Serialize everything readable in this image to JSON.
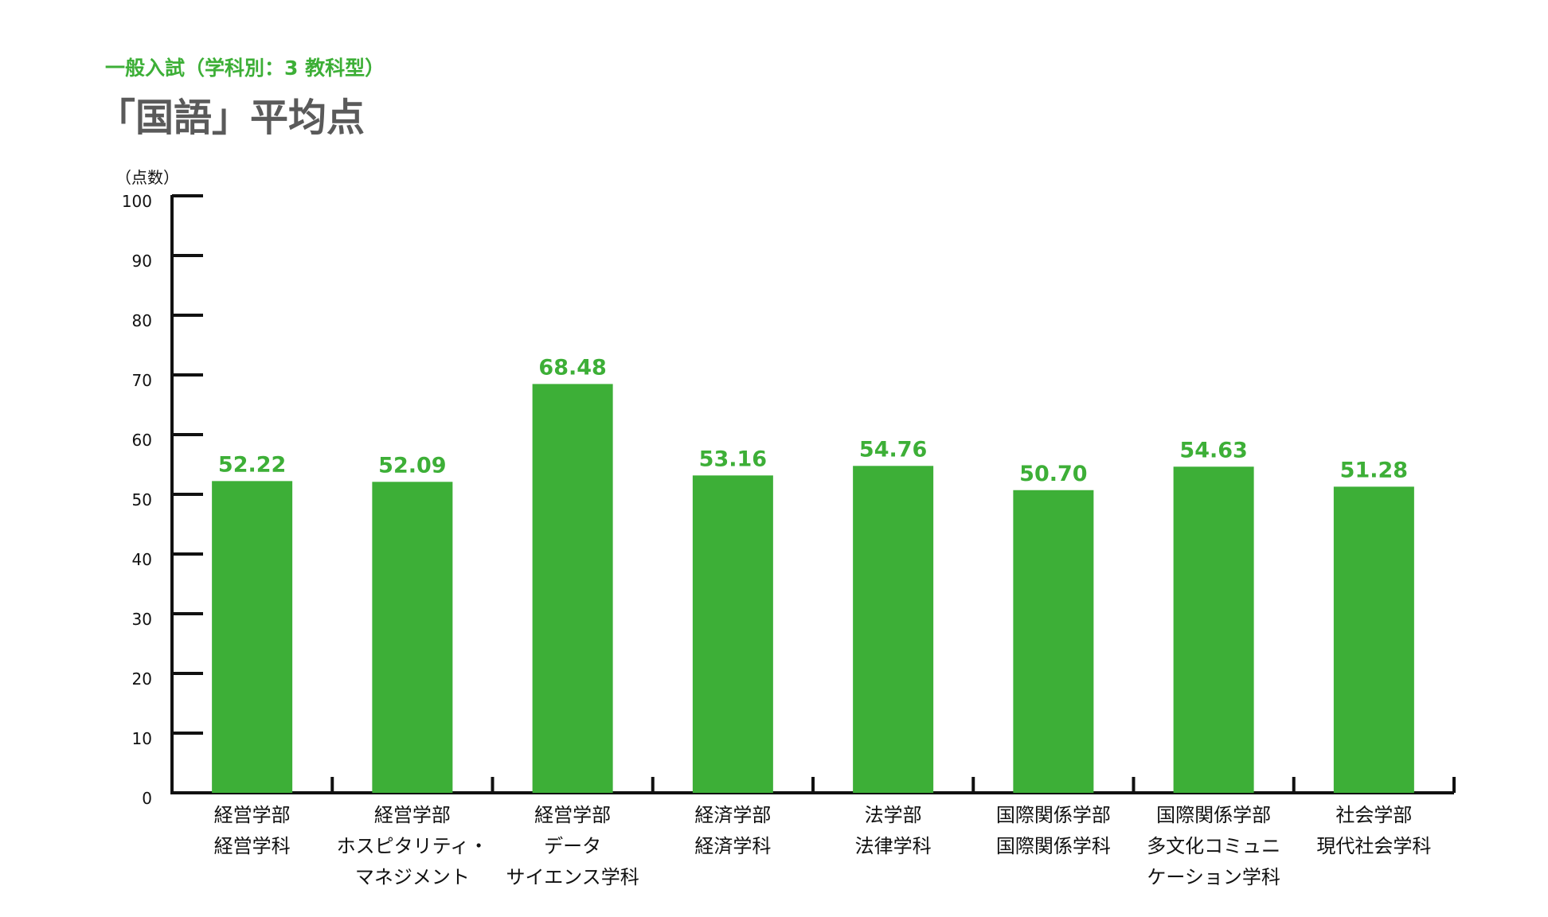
{
  "header": {
    "subtitle": "一般入試（学科別：3 教科型）",
    "title": "「国語」平均点"
  },
  "colors": {
    "bar": "#3daf37",
    "value_label": "#3daf37",
    "title": "#5a5a5a",
    "axis": "#111111"
  },
  "chart_data": {
    "type": "bar",
    "title": "「国語」平均点",
    "subtitle": "一般入試（学科別：3 教科型）",
    "xlabel": "",
    "ylabel": "（点数）",
    "ylim": [
      0,
      100
    ],
    "yticks": [
      0,
      10,
      20,
      30,
      40,
      50,
      60,
      70,
      80,
      90,
      100
    ],
    "grid": false,
    "categories": [
      [
        "経営学部",
        "経営学科"
      ],
      [
        "経営学部",
        "ホスピタリティ・",
        "マネジメント"
      ],
      [
        "経営学部",
        "データ",
        "サイエンス学科"
      ],
      [
        "経済学部",
        "経済学科"
      ],
      [
        "法学部",
        "法律学科"
      ],
      [
        "国際関係学部",
        "国際関係学科"
      ],
      [
        "国際関係学部",
        "多文化コミュニ",
        "ケーション学科"
      ],
      [
        "社会学部",
        "現代社会学科"
      ]
    ],
    "values": [
      52.22,
      52.09,
      68.48,
      53.16,
      54.76,
      50.7,
      54.63,
      51.28
    ],
    "value_labels": [
      "52.22",
      "52.09",
      "68.48",
      "53.16",
      "54.76",
      "50.70",
      "54.63",
      "51.28"
    ]
  }
}
